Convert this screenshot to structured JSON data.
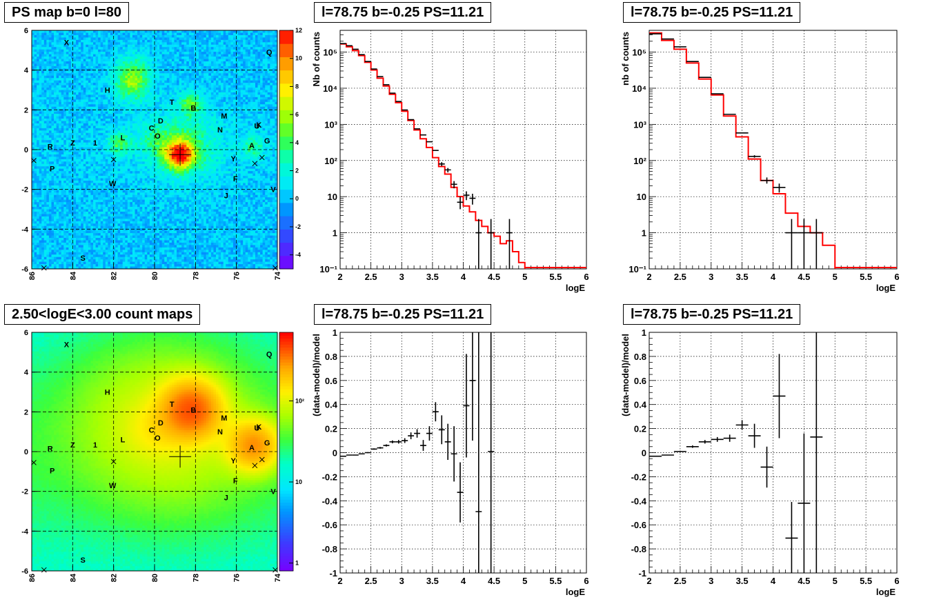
{
  "panels": {
    "map_top": {
      "title": "PS map b=0 l=80"
    },
    "map_bottom": {
      "title": "2.50<logE<3.00 count maps"
    },
    "spec_a": {
      "title": "l=78.75 b=-0.25 PS=11.21"
    },
    "spec_b": {
      "title": "l=78.75 b=-0.25 PS=11.21"
    },
    "resid_a": {
      "title": "l=78.75 b=-0.25 PS=11.21"
    },
    "resid_b": {
      "title": "l=78.75 b=-0.25 PS=11.21"
    }
  },
  "colors": {
    "data": "#000000",
    "model": "#ff0000",
    "grid": "#000000"
  },
  "chart_data": [
    {
      "id": "map_top",
      "type": "heatmap",
      "title": "PS map b=0 l=80",
      "x_ticks": [
        86,
        84,
        82,
        80,
        78,
        76,
        74
      ],
      "xlim": [
        86,
        74
      ],
      "y_ticks": [
        6,
        4,
        2,
        0,
        -2,
        -4,
        -6
      ],
      "ylim": [
        -6,
        6
      ],
      "z_ticks": [
        12,
        10,
        8,
        6,
        4,
        2,
        0,
        -2,
        -4
      ],
      "zlim": [
        -5,
        12
      ],
      "hotspots": [
        {
          "l": 78.75,
          "b": -0.25,
          "amp": 10,
          "w": 0.5
        },
        {
          "l": 78.5,
          "b": 0.2,
          "amp": 3,
          "w": 1.2
        },
        {
          "l": 81.1,
          "b": 3.2,
          "amp": 4,
          "w": 0.6
        },
        {
          "l": 81.0,
          "b": 4.0,
          "amp": 3,
          "w": 0.6
        },
        {
          "l": 78.2,
          "b": 2.3,
          "amp": 4,
          "w": 0.4
        },
        {
          "l": 81.7,
          "b": 0.3,
          "amp": 4,
          "w": 0.4
        },
        {
          "l": 75.2,
          "b": 0.15,
          "amp": 3,
          "w": 0.4
        },
        {
          "l": 80.0,
          "b": 0.5,
          "amp": 2,
          "w": 0.6
        }
      ],
      "labels": [
        {
          "t": "X",
          "l": 84.3,
          "b": 5.4
        },
        {
          "t": "Q",
          "l": 74.4,
          "b": 4.9
        },
        {
          "t": "H",
          "l": 82.3,
          "b": 3.0
        },
        {
          "t": "T",
          "l": 79.15,
          "b": 2.4
        },
        {
          "t": "B",
          "l": 78.1,
          "b": 2.1
        },
        {
          "t": "M",
          "l": 76.6,
          "b": 1.7
        },
        {
          "t": "D",
          "l": 79.7,
          "b": 1.45
        },
        {
          "t": "U",
          "l": 75.0,
          "b": 1.2
        },
        {
          "t": "K",
          "l": 74.9,
          "b": 1.25
        },
        {
          "t": "C",
          "l": 80.15,
          "b": 1.1
        },
        {
          "t": "N",
          "l": 76.8,
          "b": 1.0
        },
        {
          "t": "O",
          "l": 79.85,
          "b": 0.7
        },
        {
          "t": "G",
          "l": 74.5,
          "b": 0.45
        },
        {
          "t": "1",
          "l": 82.9,
          "b": 0.35
        },
        {
          "t": "L",
          "l": 81.55,
          "b": 0.6
        },
        {
          "t": "Z",
          "l": 84.0,
          "b": 0.35
        },
        {
          "t": "A",
          "l": 75.25,
          "b": 0.2
        },
        {
          "t": "R",
          "l": 85.1,
          "b": 0.15
        },
        {
          "t": "Y",
          "l": 76.15,
          "b": -0.45
        },
        {
          "t": "P",
          "l": 85.0,
          "b": -0.95
        },
        {
          "t": "F",
          "l": 76.05,
          "b": -1.45
        },
        {
          "t": "W",
          "l": 82.05,
          "b": -1.7
        },
        {
          "t": "V",
          "l": 74.2,
          "b": -2.0
        },
        {
          "t": "J",
          "l": 76.5,
          "b": -2.3
        },
        {
          "t": "S",
          "l": 83.5,
          "b": -5.45
        }
      ],
      "crosses": [
        {
          "l": 85.9,
          "b": -0.55
        },
        {
          "l": 82.0,
          "b": -0.5
        },
        {
          "l": 75.1,
          "b": -0.7
        },
        {
          "l": 74.75,
          "b": -0.4
        },
        {
          "l": 85.4,
          "b": -5.95
        },
        {
          "l": 74.1,
          "b": -5.95
        }
      ],
      "marker": {
        "l": 78.75,
        "b": -0.25
      }
    },
    {
      "id": "map_bottom",
      "type": "heatmap",
      "title": "2.50<logE<3.00 count maps",
      "x_ticks": [
        86,
        84,
        82,
        80,
        78,
        76,
        74
      ],
      "xlim": [
        86,
        74
      ],
      "y_ticks": [
        6,
        4,
        2,
        0,
        -2,
        -4,
        -6
      ],
      "ylim": [
        -6,
        6
      ],
      "z_scale": "log",
      "z_tick_labels": [
        "10",
        "1",
        "10²"
      ],
      "zlim": [
        0.8,
        700
      ],
      "hotspots": [
        {
          "l": 78.2,
          "b": 2.1,
          "amp": 350,
          "w": 0.9
        },
        {
          "l": 75.15,
          "b": 0.3,
          "amp": 250,
          "w": 0.8
        },
        {
          "l": 78.9,
          "b": 1.2,
          "amp": 60,
          "w": 2.6
        },
        {
          "l": 80.0,
          "b": 1.1,
          "amp": 40,
          "w": 0.9
        },
        {
          "l": 81.2,
          "b": 2.0,
          "amp": 20,
          "w": 2.4
        }
      ],
      "labels": "same as map_top",
      "marker": {
        "l": 78.75,
        "b": -0.25
      }
    },
    {
      "id": "spec_a",
      "type": "line",
      "title": "l=78.75 b=-0.25 PS=11.21",
      "xlabel": "logE",
      "ylabel": "Nb of counts",
      "yscale": "log",
      "xlim": [
        2,
        6
      ],
      "ylim": [
        0.1,
        400000
      ],
      "x_tick_labels": [
        "2",
        "2.5",
        "3",
        "3.5",
        "4",
        "4.5",
        "5",
        "5.5",
        "6"
      ],
      "y_tick_labels": [
        "10⁻¹",
        "1",
        "10",
        "10²",
        "10³",
        "10⁴",
        "10⁵"
      ],
      "series": [
        {
          "name": "",
          "kind": "points",
          "bin_width": 0.1,
          "x": [
            2.05,
            2.15,
            2.25,
            2.35,
            2.45,
            2.55,
            2.65,
            2.75,
            2.85,
            2.95,
            3.05,
            3.15,
            3.25,
            3.35,
            3.45,
            3.55,
            3.65,
            3.75,
            3.85,
            3.95,
            4.05,
            4.15,
            4.25,
            4.45,
            4.75
          ],
          "y": [
            172000,
            150000,
            120000,
            85000,
            55000,
            34000,
            21000,
            12500,
            7300,
            4300,
            2500,
            1350,
            750,
            510,
            330,
            190,
            80,
            55,
            22,
            7,
            11,
            9,
            1,
            1,
            1
          ],
          "ylo": [
            172000,
            150000,
            120000,
            85000,
            55000,
            34000,
            21000,
            12500,
            7300,
            4300,
            2500,
            1350,
            750,
            510,
            330,
            190,
            70,
            47,
            17,
            4.5,
            8,
            6,
            0.1,
            0.1,
            0.1
          ],
          "yhi": [
            172000,
            150000,
            120000,
            85000,
            55000,
            34000,
            21000,
            12500,
            7300,
            4300,
            2500,
            1350,
            750,
            510,
            330,
            190,
            90,
            62,
            27,
            10,
            14,
            12,
            2.4,
            2.4,
            2.4
          ]
        },
        {
          "name": "",
          "kind": "step",
          "bin_width": 0.1,
          "x": [
            2.05,
            2.15,
            2.25,
            2.35,
            2.45,
            2.55,
            2.65,
            2.75,
            2.85,
            2.95,
            3.05,
            3.15,
            3.25,
            3.35,
            3.45,
            3.55,
            3.65,
            3.75,
            3.85,
            3.95,
            4.05,
            4.15,
            4.25,
            4.35,
            4.45,
            4.55,
            4.65,
            4.75,
            4.85,
            4.95
          ],
          "y": [
            168000,
            140000,
            110000,
            80000,
            52000,
            32000,
            19000,
            11500,
            6800,
            4000,
            2300,
            1280,
            700,
            400,
            230,
            120,
            68,
            42,
            18,
            10,
            5.5,
            3.8,
            2.2,
            1.5,
            1.0,
            0.8,
            0.5,
            0.6,
            0.3,
            0.15
          ]
        }
      ]
    },
    {
      "id": "spec_b",
      "type": "line",
      "title": "l=78.75 b=-0.25 PS=11.21",
      "xlabel": "logE",
      "ylabel": "nb of counts",
      "yscale": "log",
      "xlim": [
        2,
        6
      ],
      "ylim": [
        0.1,
        400000
      ],
      "x_tick_labels": [
        "2",
        "2.5",
        "3",
        "3.5",
        "4",
        "4.5",
        "5",
        "5.5",
        "6"
      ],
      "y_tick_labels": [
        "10⁻¹",
        "1",
        "10",
        "10²",
        "10³",
        "10⁴",
        "10⁵"
      ],
      "series": [
        {
          "name": "",
          "kind": "points",
          "bin_width": 0.2,
          "x": [
            2.1,
            2.3,
            2.5,
            2.7,
            2.9,
            3.1,
            3.3,
            3.5,
            3.7,
            3.9,
            4.1,
            4.3,
            4.5,
            4.7
          ],
          "y": [
            320000,
            230000,
            140000,
            55000,
            20000,
            7000,
            1900,
            580,
            130,
            28,
            18,
            1,
            1,
            1
          ],
          "ylo": [
            320000,
            230000,
            140000,
            55000,
            20000,
            7000,
            1900,
            580,
            120,
            23,
            13,
            0.1,
            0.1,
            0.1
          ],
          "yhi": [
            320000,
            230000,
            140000,
            55000,
            20000,
            7000,
            1900,
            580,
            140,
            34,
            23,
            2.4,
            2.4,
            2.4
          ]
        },
        {
          "name": "",
          "kind": "step",
          "bin_width": 0.2,
          "x": [
            2.1,
            2.3,
            2.5,
            2.7,
            2.9,
            3.1,
            3.3,
            3.5,
            3.7,
            3.9,
            4.1,
            4.3,
            4.5,
            4.7,
            4.9
          ],
          "y": [
            340000,
            210000,
            120000,
            50000,
            18000,
            6500,
            1700,
            450,
            110,
            28,
            12,
            3.5,
            1.5,
            1.0,
            0.45
          ]
        }
      ]
    },
    {
      "id": "resid_a",
      "type": "scatter",
      "title": "l=78.75 b=-0.25 PS=11.21",
      "xlabel": "logE",
      "ylabel": "(data-model)/model",
      "xlim": [
        2,
        6
      ],
      "ylim": [
        -1,
        1
      ],
      "x_tick_labels": [
        "2",
        "2.5",
        "3",
        "3.5",
        "4",
        "4.5",
        "5",
        "5.5",
        "6"
      ],
      "y_tick_labels": [
        "-1",
        "-0.8",
        "-0.6",
        "-0.4",
        "-0.2",
        "0",
        "0.2",
        "0.4",
        "0.6",
        "0.8",
        "1"
      ],
      "series": [
        {
          "name": "",
          "bin_width": 0.1,
          "x": [
            2.05,
            2.15,
            2.25,
            2.35,
            2.45,
            2.55,
            2.65,
            2.75,
            2.85,
            2.95,
            3.05,
            3.15,
            3.25,
            3.35,
            3.45,
            3.55,
            3.65,
            3.75,
            3.85,
            3.95,
            4.05,
            4.15,
            4.25,
            4.45
          ],
          "y": [
            -0.03,
            -0.02,
            -0.02,
            -0.01,
            0.0,
            0.03,
            0.04,
            0.06,
            0.09,
            0.09,
            0.1,
            0.14,
            0.16,
            0.06,
            0.16,
            0.34,
            0.19,
            0.09,
            -0.01,
            -0.33,
            0.39,
            0.6,
            -0.49,
            0.01
          ],
          "err": [
            0.003,
            0.003,
            0.004,
            0.004,
            0.005,
            0.006,
            0.007,
            0.009,
            0.012,
            0.015,
            0.02,
            0.028,
            0.035,
            0.045,
            0.06,
            0.08,
            0.12,
            0.15,
            0.23,
            0.25,
            0.43,
            0.5,
            1.5,
            2.0
          ]
        }
      ]
    },
    {
      "id": "resid_b",
      "type": "scatter",
      "title": "l=78.75 b=-0.25 PS=11.21",
      "xlabel": "logE",
      "ylabel": "(data-model)/model",
      "xlim": [
        2,
        6
      ],
      "ylim": [
        -1,
        1
      ],
      "x_tick_labels": [
        "2",
        "2.5",
        "3",
        "3.5",
        "4",
        "4.5",
        "5",
        "5.5",
        "6"
      ],
      "y_tick_labels": [
        "-1",
        "-0.8",
        "-0.6",
        "-0.4",
        "-0.2",
        "0",
        "0.2",
        "0.4",
        "0.6",
        "0.8",
        "1"
      ],
      "series": [
        {
          "name": "",
          "bin_width": 0.2,
          "x": [
            2.1,
            2.3,
            2.5,
            2.7,
            2.9,
            3.1,
            3.3,
            3.5,
            3.7,
            3.9,
            4.1,
            4.3,
            4.5,
            4.7
          ],
          "y": [
            -0.03,
            -0.02,
            0.01,
            0.05,
            0.09,
            0.11,
            0.12,
            0.23,
            0.14,
            -0.12,
            0.47,
            -0.71,
            -0.42,
            0.13
          ],
          "err": [
            0.003,
            0.004,
            0.006,
            0.01,
            0.015,
            0.02,
            0.03,
            0.04,
            0.1,
            0.17,
            0.35,
            0.3,
            0.58,
            2.0
          ]
        }
      ]
    }
  ]
}
